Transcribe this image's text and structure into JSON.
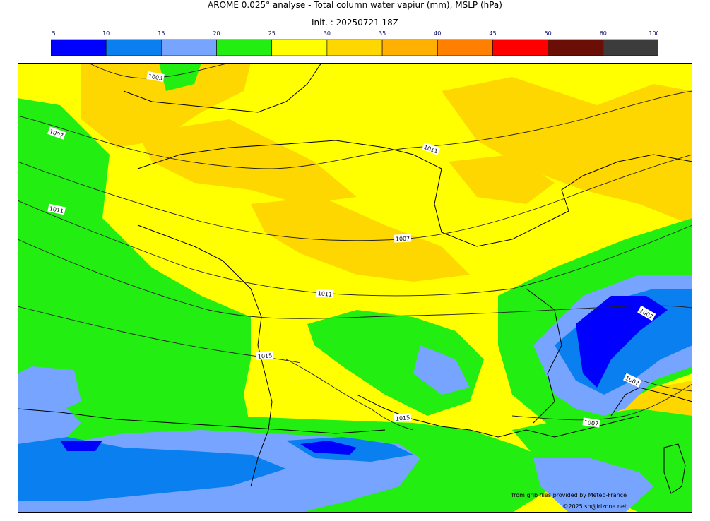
{
  "header": {
    "title": "AROME 0.025° analyse - Total column water vapiur (mm), MSLP (hPa)",
    "init": "Init. : 20250721 18Z"
  },
  "colorbar": {
    "ticks": [
      "5",
      "10",
      "15",
      "20",
      "25",
      "30",
      "35",
      "40",
      "45",
      "50",
      "60",
      "100"
    ],
    "colors": [
      "#0000ff",
      "#0a7ff0",
      "#77a4ff",
      "#22ee11",
      "#ffff00",
      "#ffd700",
      "#ffb000",
      "#ff8000",
      "#ff0000",
      "#6b0e05",
      "#3c3c3c"
    ]
  },
  "map": {
    "isobar_labels": [
      "1003",
      "1007",
      "1011",
      "1007",
      "1007",
      "1011",
      "1015",
      "1015",
      "1011",
      "1007",
      "1007"
    ],
    "palette": {
      "yellow": "#ffff00",
      "gold": "#ffd700",
      "green": "#22ee11",
      "lightblue": "#77a4ff",
      "blue": "#0a7ff0",
      "darkblue": "#0000ff",
      "orange": "#ffb000"
    }
  },
  "credits": {
    "source": "from grib files provided by Meteo-France",
    "copyright": "©2025 sb@irizone.net"
  }
}
